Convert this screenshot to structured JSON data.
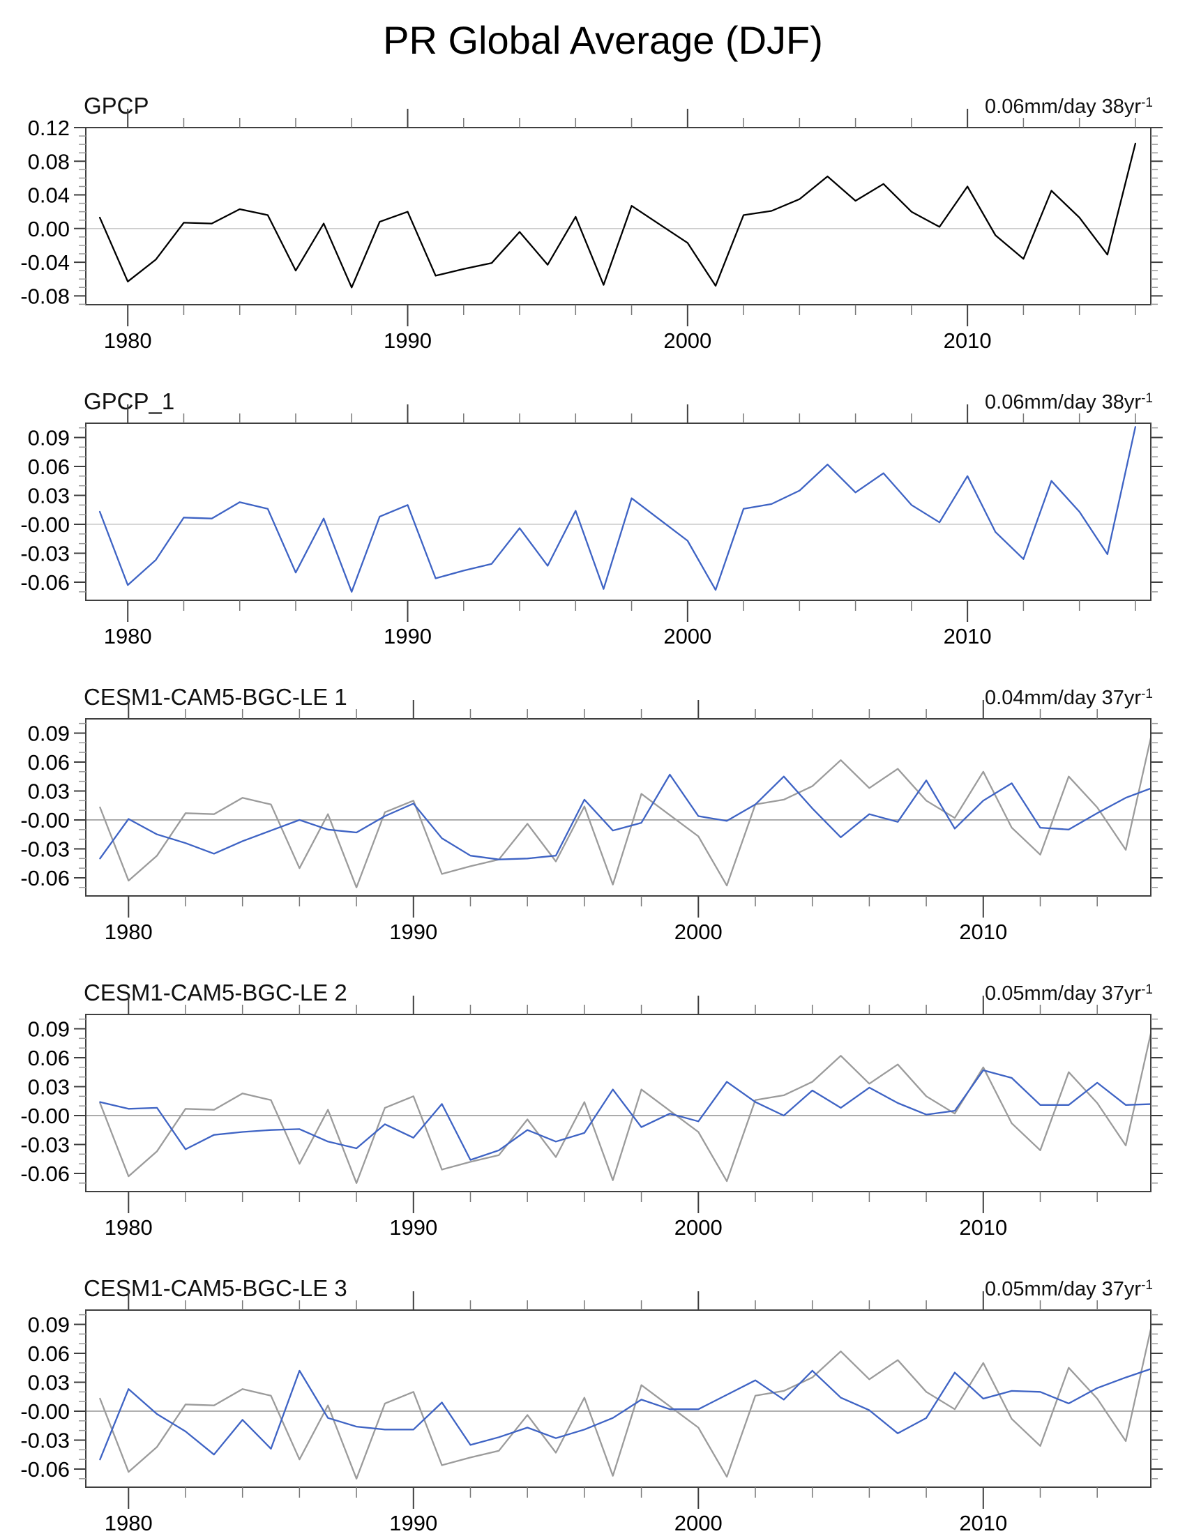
{
  "title": "PR Global Average (DJF)",
  "colors": {
    "obs_black": "#000000",
    "model_blue": "#3E63C4",
    "obs_gray": "#9B9B9B",
    "zero_line_light": "#CBCBCB",
    "zero_line_dark": "#999999",
    "frame": "#3F3F3F",
    "minor_tick": "#999999",
    "axis_text": "#000000"
  },
  "years": [
    1979,
    1980,
    1981,
    1982,
    1983,
    1984,
    1985,
    1986,
    1987,
    1988,
    1989,
    1990,
    1991,
    1992,
    1993,
    1994,
    1995,
    1996,
    1997,
    1998,
    1999,
    2000,
    2001,
    2002,
    2003,
    2004,
    2005,
    2006,
    2007,
    2008,
    2009,
    2010,
    2011,
    2012,
    2013,
    2014,
    2015,
    2016
  ],
  "chart_data": [
    {
      "type": "line",
      "label": "GPCP",
      "annotation_base": "0.06mm/day 38yr",
      "annotation_exp": "-1",
      "xlim": [
        1978.5,
        2016.55
      ],
      "ylim": [
        -0.0905,
        0.12
      ],
      "xtick_major": [
        1980,
        1990,
        2000,
        2010
      ],
      "xtick_minor_step": 2,
      "ytick_values": [
        0.12,
        0.08,
        0.04,
        0.0,
        -0.04,
        -0.08
      ],
      "ytick_labels": [
        "0.12",
        "0.08",
        "0.04",
        "0.00",
        "-0.04",
        "-0.08"
      ],
      "zero_line": "#CBCBCB",
      "x": [
        1979,
        1980,
        1981,
        1982,
        1983,
        1984,
        1985,
        1986,
        1987,
        1988,
        1989,
        1990,
        1991,
        1992,
        1993,
        1994,
        1995,
        1996,
        1997,
        1998,
        1999,
        2000,
        2001,
        2002,
        2003,
        2004,
        2005,
        2006,
        2007,
        2008,
        2009,
        2010,
        2011,
        2012,
        2013,
        2014,
        2015,
        2016
      ],
      "series": [
        {
          "name": "GPCP",
          "color": "#000000",
          "values": [
            0.013,
            -0.063,
            -0.037,
            0.007,
            0.006,
            0.023,
            0.016,
            -0.05,
            0.006,
            -0.07,
            0.008,
            0.02,
            -0.056,
            -0.048,
            -0.041,
            -0.004,
            -0.043,
            0.014,
            -0.067,
            0.027,
            0.005,
            -0.017,
            -0.068,
            0.016,
            0.021,
            0.035,
            0.062,
            0.033,
            0.053,
            0.02,
            0.002,
            0.05,
            -0.008,
            -0.036,
            0.045,
            0.013,
            -0.031,
            0.101
          ]
        }
      ]
    },
    {
      "type": "line",
      "label": "GPCP_1",
      "annotation_base": "0.06mm/day 38yr",
      "annotation_exp": "-1",
      "xlim": [
        1978.5,
        2016.55
      ],
      "ylim": [
        -0.0788,
        0.1048
      ],
      "xtick_major": [
        1980,
        1990,
        2000,
        2010
      ],
      "xtick_minor_step": 2,
      "ytick_values": [
        0.09,
        0.06,
        0.03,
        0.0,
        -0.03,
        -0.06
      ],
      "ytick_labels": [
        "0.09",
        "0.06",
        "0.03",
        "-0.00",
        "-0.03",
        "-0.06"
      ],
      "zero_line": "#CBCBCB",
      "x": [
        1979,
        1980,
        1981,
        1982,
        1983,
        1984,
        1985,
        1986,
        1987,
        1988,
        1989,
        1990,
        1991,
        1992,
        1993,
        1994,
        1995,
        1996,
        1997,
        1998,
        1999,
        2000,
        2001,
        2002,
        2003,
        2004,
        2005,
        2006,
        2007,
        2008,
        2009,
        2010,
        2011,
        2012,
        2013,
        2014,
        2015,
        2016
      ],
      "series": [
        {
          "name": "GPCP_1",
          "color": "#3E63C4",
          "values": [
            0.013,
            -0.063,
            -0.037,
            0.007,
            0.006,
            0.023,
            0.016,
            -0.05,
            0.006,
            -0.07,
            0.008,
            0.02,
            -0.056,
            -0.048,
            -0.041,
            -0.004,
            -0.043,
            0.014,
            -0.067,
            0.027,
            0.005,
            -0.017,
            -0.068,
            0.016,
            0.021,
            0.035,
            0.062,
            0.033,
            0.053,
            0.02,
            0.002,
            0.05,
            -0.008,
            -0.036,
            0.045,
            0.013,
            -0.031,
            0.101
          ]
        }
      ]
    },
    {
      "type": "line",
      "label": "CESM1-CAM5-BGC-LE 1",
      "annotation_base": "0.04mm/day 37yr",
      "annotation_exp": "-1",
      "xlim": [
        1978.5,
        2015.88
      ],
      "ylim": [
        -0.0788,
        0.1048
      ],
      "xtick_major": [
        1980,
        1990,
        2000,
        2010
      ],
      "xtick_minor_step": 2,
      "ytick_values": [
        0.09,
        0.06,
        0.03,
        0.0,
        -0.03,
        -0.06
      ],
      "ytick_labels": [
        "0.09",
        "0.06",
        "0.03",
        "-0.00",
        "-0.03",
        "-0.06"
      ],
      "zero_line": "#999999",
      "x": [
        1979,
        1980,
        1981,
        1982,
        1983,
        1984,
        1985,
        1986,
        1987,
        1988,
        1989,
        1990,
        1991,
        1992,
        1993,
        1994,
        1995,
        1996,
        1997,
        1998,
        1999,
        2000,
        2001,
        2002,
        2003,
        2004,
        2005,
        2006,
        2007,
        2008,
        2009,
        2010,
        2011,
        2012,
        2013,
        2014,
        2015,
        2016
      ],
      "series": [
        {
          "name": "GPCP",
          "color": "#9B9B9B",
          "values": [
            0.013,
            -0.063,
            -0.037,
            0.007,
            0.006,
            0.023,
            0.016,
            -0.05,
            0.006,
            -0.07,
            0.008,
            0.02,
            -0.056,
            -0.048,
            -0.041,
            -0.004,
            -0.043,
            0.014,
            -0.067,
            0.027,
            0.005,
            -0.017,
            -0.068,
            0.016,
            0.021,
            0.035,
            0.062,
            0.033,
            0.053,
            0.02,
            0.002,
            0.05,
            -0.008,
            -0.036,
            0.045,
            0.013,
            -0.031,
            0.101
          ]
        },
        {
          "name": "CESM1-CAM5-BGC-LE 1",
          "color": "#3E63C4",
          "values": [
            -0.04,
            0.001,
            -0.015,
            -0.024,
            -0.035,
            -0.022,
            -0.011,
            0.0,
            -0.01,
            -0.013,
            0.004,
            0.017,
            -0.019,
            -0.037,
            -0.041,
            -0.04,
            -0.037,
            0.021,
            -0.011,
            -0.003,
            0.047,
            0.004,
            -0.001,
            0.016,
            0.045,
            0.012,
            -0.018,
            0.006,
            -0.002,
            0.041,
            -0.009,
            0.02,
            0.038,
            -0.008,
            -0.01,
            0.007,
            0.023,
            0.034
          ]
        }
      ]
    },
    {
      "type": "line",
      "label": "CESM1-CAM5-BGC-LE 2",
      "annotation_base": "0.05mm/day 37yr",
      "annotation_exp": "-1",
      "xlim": [
        1978.5,
        2015.88
      ],
      "ylim": [
        -0.0788,
        0.1048
      ],
      "xtick_major": [
        1980,
        1990,
        2000,
        2010
      ],
      "xtick_minor_step": 2,
      "ytick_values": [
        0.09,
        0.06,
        0.03,
        0.0,
        -0.03,
        -0.06
      ],
      "ytick_labels": [
        "0.09",
        "0.06",
        "0.03",
        "-0.00",
        "-0.03",
        "-0.06"
      ],
      "zero_line": "#999999",
      "x": [
        1979,
        1980,
        1981,
        1982,
        1983,
        1984,
        1985,
        1986,
        1987,
        1988,
        1989,
        1990,
        1991,
        1992,
        1993,
        1994,
        1995,
        1996,
        1997,
        1998,
        1999,
        2000,
        2001,
        2002,
        2003,
        2004,
        2005,
        2006,
        2007,
        2008,
        2009,
        2010,
        2011,
        2012,
        2013,
        2014,
        2015,
        2016
      ],
      "series": [
        {
          "name": "GPCP",
          "color": "#9B9B9B",
          "values": [
            0.013,
            -0.063,
            -0.037,
            0.007,
            0.006,
            0.023,
            0.016,
            -0.05,
            0.006,
            -0.07,
            0.008,
            0.02,
            -0.056,
            -0.048,
            -0.041,
            -0.004,
            -0.043,
            0.014,
            -0.067,
            0.027,
            0.005,
            -0.017,
            -0.068,
            0.016,
            0.021,
            0.035,
            0.062,
            0.033,
            0.053,
            0.02,
            0.002,
            0.05,
            -0.008,
            -0.036,
            0.045,
            0.013,
            -0.031,
            0.101
          ]
        },
        {
          "name": "CESM1-CAM5-BGC-LE 2",
          "color": "#3E63C4",
          "values": [
            0.014,
            0.007,
            0.008,
            -0.035,
            -0.02,
            -0.017,
            -0.015,
            -0.014,
            -0.027,
            -0.034,
            -0.009,
            -0.023,
            0.012,
            -0.046,
            -0.036,
            -0.015,
            -0.027,
            -0.018,
            0.027,
            -0.012,
            0.002,
            -0.006,
            0.035,
            0.014,
            0.0,
            0.026,
            0.008,
            0.029,
            0.013,
            0.001,
            0.005,
            0.047,
            0.039,
            0.011,
            0.011,
            0.034,
            0.011,
            0.012
          ]
        }
      ]
    },
    {
      "type": "line",
      "label": "CESM1-CAM5-BGC-LE 3",
      "annotation_base": "0.05mm/day 37yr",
      "annotation_exp": "-1",
      "xlim": [
        1978.5,
        2015.88
      ],
      "ylim": [
        -0.0788,
        0.1048
      ],
      "xtick_major": [
        1980,
        1990,
        2000,
        2010
      ],
      "xtick_minor_step": 2,
      "ytick_values": [
        0.09,
        0.06,
        0.03,
        0.0,
        -0.03,
        -0.06
      ],
      "ytick_labels": [
        "0.09",
        "0.06",
        "0.03",
        "-0.00",
        "-0.03",
        "-0.06"
      ],
      "zero_line": "#999999",
      "x": [
        1979,
        1980,
        1981,
        1982,
        1983,
        1984,
        1985,
        1986,
        1987,
        1988,
        1989,
        1990,
        1991,
        1992,
        1993,
        1994,
        1995,
        1996,
        1997,
        1998,
        1999,
        2000,
        2001,
        2002,
        2003,
        2004,
        2005,
        2006,
        2007,
        2008,
        2009,
        2010,
        2011,
        2012,
        2013,
        2014,
        2015,
        2016
      ],
      "series": [
        {
          "name": "GPCP",
          "color": "#9B9B9B",
          "values": [
            0.013,
            -0.063,
            -0.037,
            0.007,
            0.006,
            0.023,
            0.016,
            -0.05,
            0.006,
            -0.07,
            0.008,
            0.02,
            -0.056,
            -0.048,
            -0.041,
            -0.004,
            -0.043,
            0.014,
            -0.067,
            0.027,
            0.005,
            -0.017,
            -0.068,
            0.016,
            0.021,
            0.035,
            0.062,
            0.033,
            0.053,
            0.02,
            0.002,
            0.05,
            -0.008,
            -0.036,
            0.045,
            0.013,
            -0.031,
            0.101
          ]
        },
        {
          "name": "CESM1-CAM5-BGC-LE 3",
          "color": "#3E63C4",
          "values": [
            -0.05,
            0.023,
            -0.003,
            -0.021,
            -0.045,
            -0.009,
            -0.039,
            0.042,
            -0.007,
            -0.016,
            -0.019,
            -0.019,
            0.009,
            -0.035,
            -0.027,
            -0.017,
            -0.028,
            -0.019,
            -0.007,
            0.012,
            0.002,
            0.002,
            0.017,
            0.032,
            0.012,
            0.042,
            0.014,
            0.001,
            -0.023,
            -0.007,
            0.04,
            0.013,
            0.021,
            0.02,
            0.008,
            0.024,
            0.035,
            0.045
          ]
        }
      ]
    }
  ]
}
